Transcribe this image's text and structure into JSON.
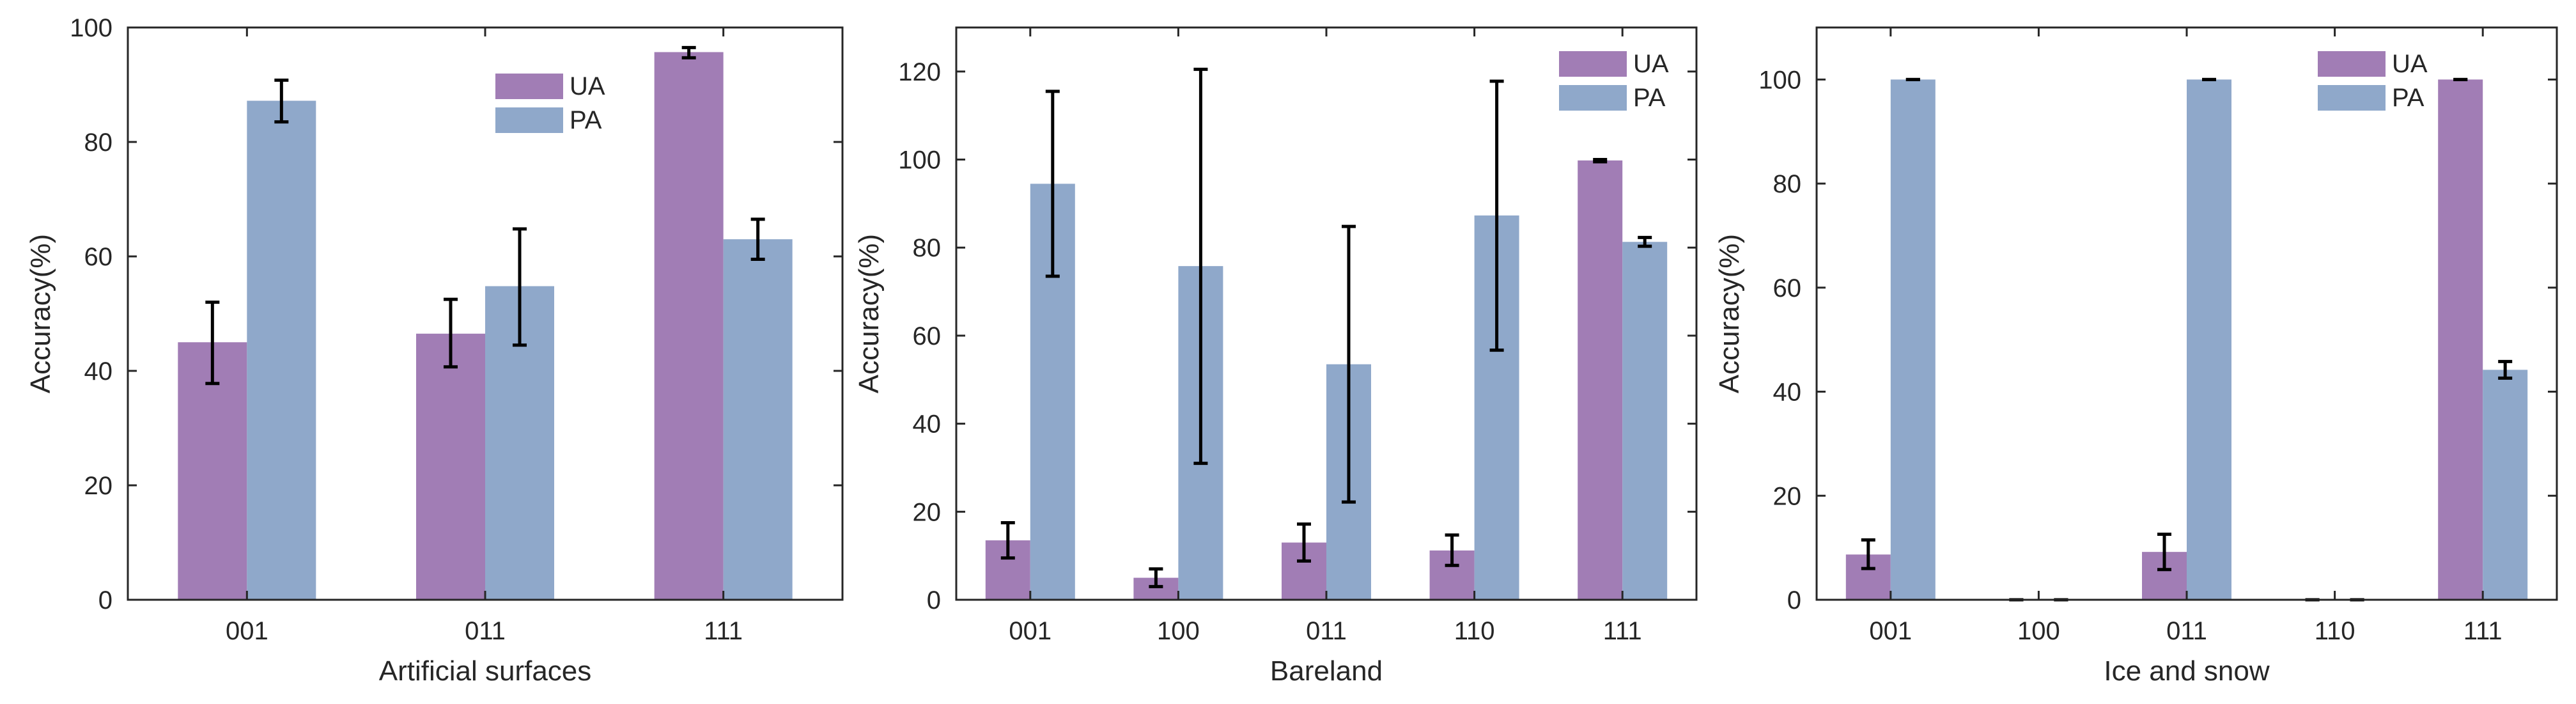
{
  "colors": {
    "UA": "#a17db5",
    "PA": "#8fa8ca",
    "axis": "#262626",
    "error": "#000000"
  },
  "chart_data": [
    {
      "type": "bar",
      "xlabel": "Artificial surfaces",
      "ylabel": "Accuracy(%)",
      "ylim": [
        0,
        100
      ],
      "yticks": [
        0,
        20,
        40,
        60,
        80,
        100
      ],
      "categories": [
        "001",
        "011",
        "111"
      ],
      "legend": "top-right",
      "series": [
        {
          "name": "UA",
          "values": [
            45.0,
            46.5,
            95.7
          ],
          "err_low": [
            37.8,
            40.7,
            94.7
          ],
          "err_high": [
            52.0,
            52.5,
            96.5
          ]
        },
        {
          "name": "PA",
          "values": [
            87.2,
            54.8,
            63.0
          ],
          "err_low": [
            83.5,
            44.5,
            59.5
          ],
          "err_high": [
            90.8,
            64.8,
            66.5
          ]
        }
      ]
    },
    {
      "type": "bar",
      "xlabel": "Bareland",
      "ylabel": "Accuracy(%)",
      "ylim": [
        0,
        130
      ],
      "yticks": [
        0,
        20,
        40,
        60,
        80,
        100,
        120
      ],
      "categories": [
        "001",
        "100",
        "011",
        "110",
        "111"
      ],
      "legend": "top-right",
      "series": [
        {
          "name": "UA",
          "values": [
            13.5,
            5.0,
            13.0,
            11.2,
            99.8
          ],
          "err_low": [
            9.5,
            3.0,
            8.8,
            7.8,
            99.5
          ],
          "err_high": [
            17.5,
            7.0,
            17.2,
            14.7,
            100.0
          ]
        },
        {
          "name": "PA",
          "values": [
            94.5,
            75.8,
            53.5,
            87.3,
            81.3
          ],
          "err_low": [
            73.5,
            31.0,
            22.2,
            56.7,
            80.3
          ],
          "err_high": [
            115.5,
            120.5,
            84.8,
            117.8,
            82.3
          ]
        }
      ]
    },
    {
      "type": "bar",
      "xlabel": "Ice and snow",
      "ylabel": "Accuracy(%)",
      "ylim": [
        0,
        110
      ],
      "yticks": [
        0,
        20,
        40,
        60,
        80,
        100
      ],
      "categories": [
        "001",
        "100",
        "011",
        "110",
        "111"
      ],
      "legend": "top-right",
      "series": [
        {
          "name": "UA",
          "values": [
            8.7,
            0.0,
            9.2,
            0.0,
            100.0
          ],
          "err_low": [
            6.0,
            0.0,
            5.8,
            0.0,
            100.0
          ],
          "err_high": [
            11.5,
            0.0,
            12.6,
            0.0,
            100.0
          ]
        },
        {
          "name": "PA",
          "values": [
            100.0,
            0.0,
            100.0,
            0.0,
            44.2
          ],
          "err_low": [
            100.0,
            0.0,
            100.0,
            0.0,
            42.6
          ],
          "err_high": [
            100.0,
            0.0,
            100.0,
            0.0,
            45.8
          ]
        }
      ]
    }
  ]
}
